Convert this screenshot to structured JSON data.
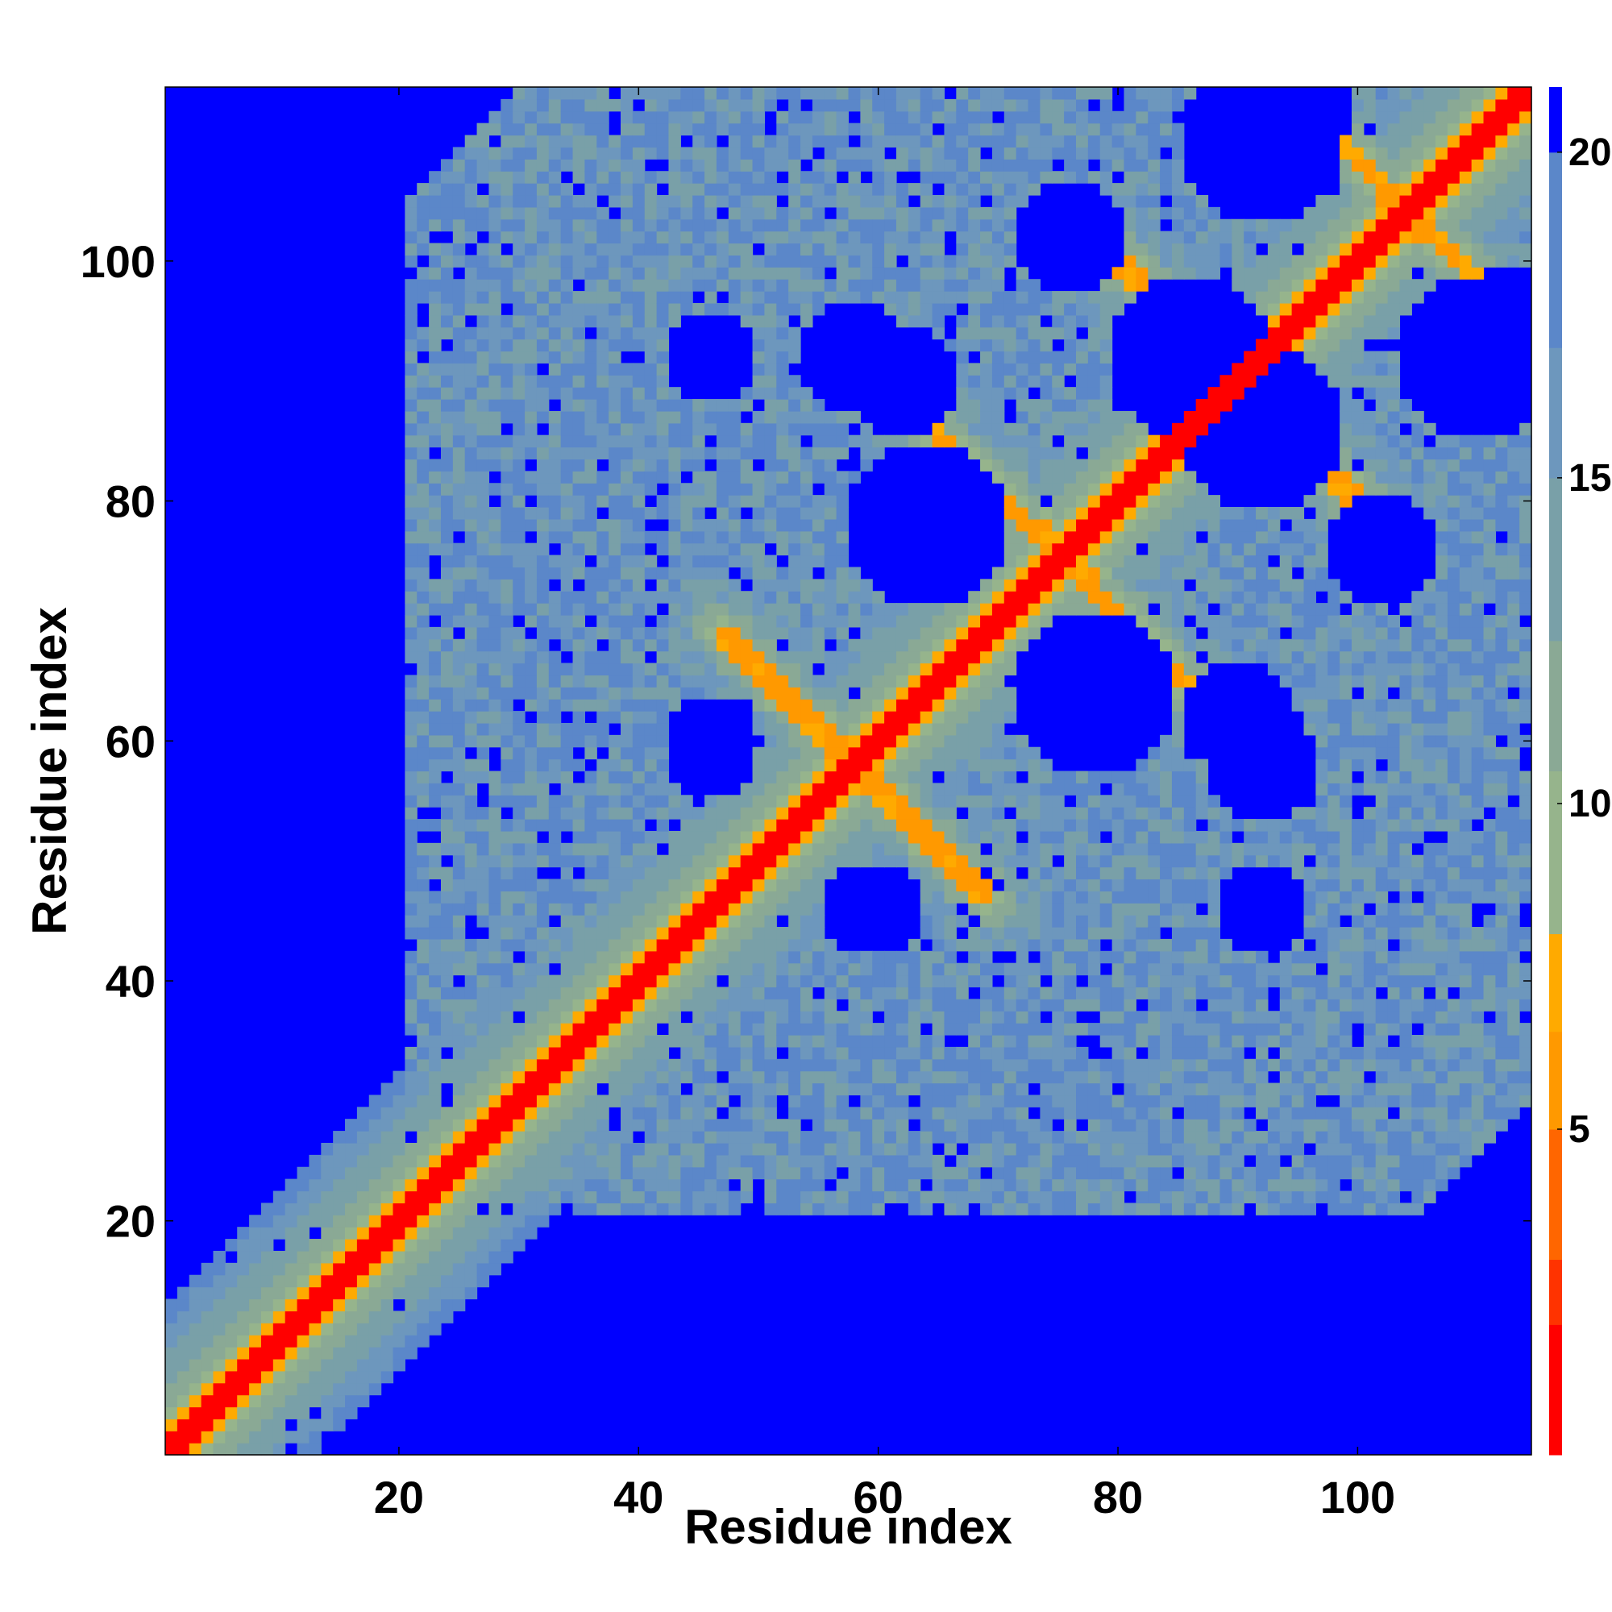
{
  "chart_data": {
    "type": "heatmap",
    "title": "",
    "xlabel": "Residue index",
    "ylabel": "Residue index",
    "xlim": [
      1,
      114
    ],
    "ylim": [
      1,
      114
    ],
    "x_ticks": [
      20,
      40,
      60,
      80,
      100
    ],
    "y_ticks": [
      20,
      40,
      60,
      80,
      100
    ],
    "x_tick_labels": [
      "20",
      "40",
      "60",
      "80",
      "100"
    ],
    "y_tick_labels": [
      "20",
      "40",
      "60",
      "80",
      "100"
    ],
    "colorbar": {
      "range": [
        0,
        21
      ],
      "ticks": [
        5,
        10,
        15,
        20
      ],
      "tick_labels": [
        "5",
        "10",
        "15",
        "20"
      ],
      "colors": [
        "#ff0000",
        "#ff3300",
        "#ff6600",
        "#ff9900",
        "#ffaa00",
        "#96b48c",
        "#8aa995",
        "#79a0a8",
        "#6d97bd",
        "#5b87c9",
        "#0000ff"
      ],
      "bounds": [
        0,
        2,
        3,
        5,
        6.5,
        8,
        10.5,
        12.5,
        15,
        17,
        20,
        21
      ]
    },
    "symmetric": true,
    "diagonal_value": 0,
    "background_value": 21,
    "contact_bands": [
      {
        "from": [
          1,
          1
        ],
        "to": [
          40,
          40
        ],
        "kind": "antiparallel-near-diagonal",
        "min_value": 5
      },
      {
        "from": [
          47,
          69
        ],
        "to": [
          57,
          59
        ],
        "kind": "antiparallel",
        "min_value": 5
      },
      {
        "from": [
          62,
          88
        ],
        "to": [
          75,
          76
        ],
        "kind": "antiparallel",
        "min_value": 5
      },
      {
        "from": [
          78,
          102
        ],
        "to": [
          88,
          92
        ],
        "kind": "antiparallel",
        "min_value": 5
      },
      {
        "from": [
          95,
          114
        ],
        "to": [
          103,
          105
        ],
        "kind": "antiparallel",
        "min_value": 5
      }
    ],
    "empty_regions": [
      {
        "center": [
          58,
          92
        ],
        "radius": 5
      },
      {
        "center": [
          86,
          92
        ],
        "radius": 7
      },
      {
        "center": [
          110,
          92
        ],
        "radius": 7
      },
      {
        "center": [
          64,
          78
        ],
        "radius": 7
      },
      {
        "center": [
          90,
          62
        ],
        "radius": 5
      },
      {
        "center": [
          102,
          76
        ],
        "radius": 5
      },
      {
        "center": [
          46,
          60
        ],
        "radius": 4
      },
      {
        "center": [
          59,
          46
        ],
        "radius": 4
      },
      {
        "center": [
          92,
          46
        ],
        "radius": 4
      },
      {
        "center": [
          94,
          114
        ],
        "radius": 6
      }
    ]
  }
}
